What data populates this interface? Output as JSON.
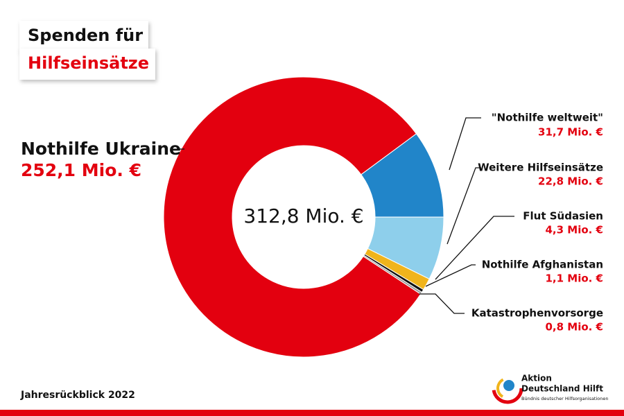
{
  "chart_data": {
    "type": "pie",
    "title": "Spenden für",
    "subtitle": "Hilfseinsätze",
    "center_label": "312,8 Mio. €",
    "categories": [
      "Nothilfe Ukraine",
      "\"Nothilfe weltweit\"",
      "Weitere Hilfseinsätze",
      "Flut Südasien",
      "Nothilfe Afghanistan",
      "Katastrophenvorsorge"
    ],
    "values": [
      252.1,
      31.7,
      22.8,
      4.3,
      1.1,
      0.8
    ],
    "value_labels": [
      "252,1 Mio. €",
      "31,7 Mio. €",
      "22,8 Mio. €",
      "4,3 Mio. €",
      "1,1 Mio. €",
      "0,8 Mio. €"
    ],
    "colors": [
      "#e3000f",
      "#2185c9",
      "#8ecfeb",
      "#f0b41c",
      "#111111",
      "#9a9a9a"
    ],
    "footer": "Jahresrückblick 2022"
  },
  "logo": {
    "line1": "Aktion",
    "line2": "Deutschland Hilft",
    "tagline": "Bündnis deutscher Hilfsorganisationen"
  }
}
